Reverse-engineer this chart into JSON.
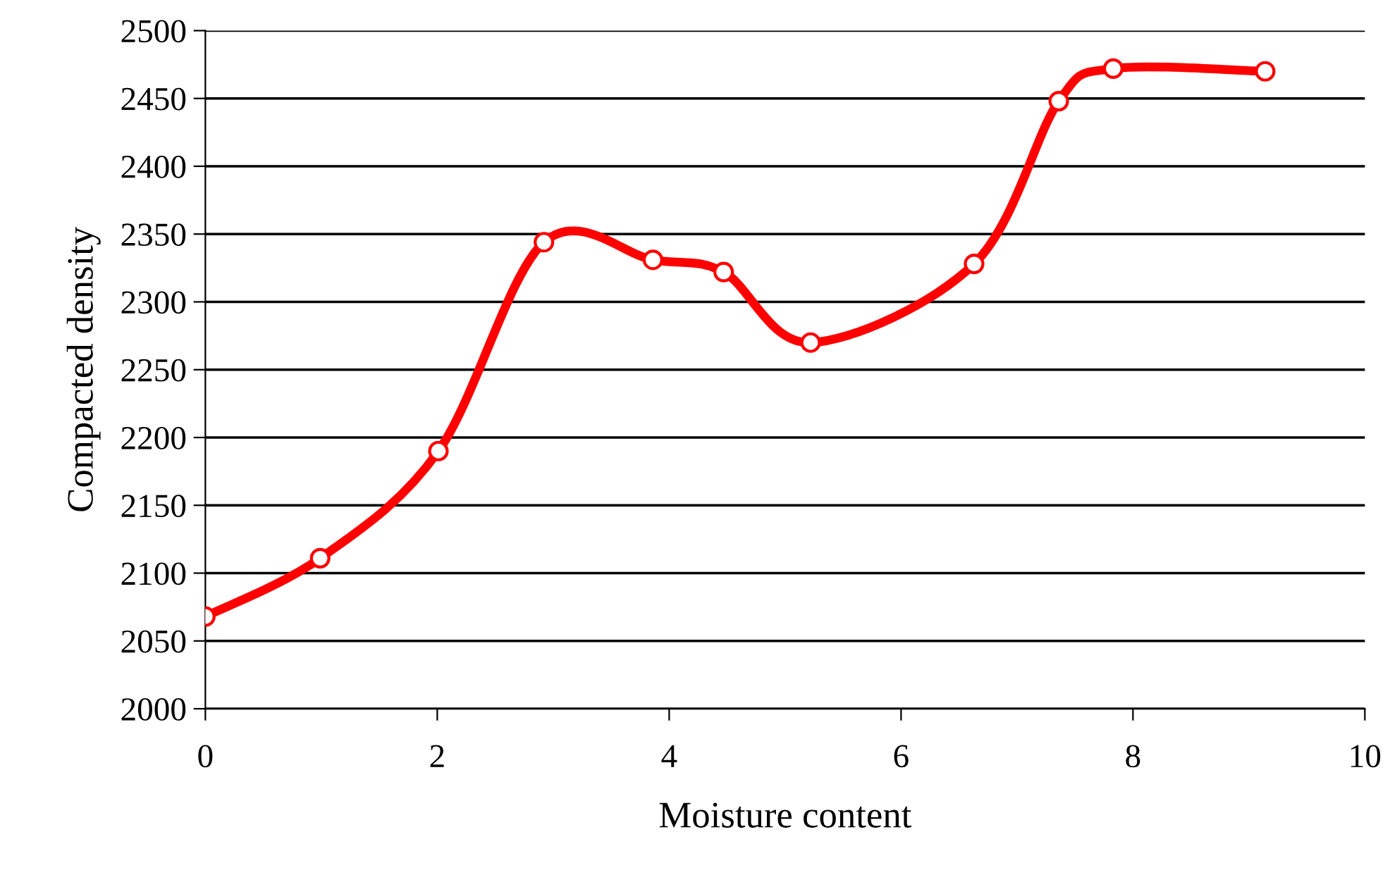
{
  "chart_data": {
    "type": "line",
    "xlabel": "Moisture content",
    "ylabel": "Compacted density",
    "xlim": [
      0,
      10
    ],
    "xticks": [
      0,
      2,
      4,
      6,
      8,
      10
    ],
    "ylim": [
      2000,
      2500
    ],
    "yticks": [
      2000,
      2050,
      2100,
      2150,
      2200,
      2250,
      2300,
      2350,
      2400,
      2450,
      2500
    ],
    "grid": "y",
    "marker": "circle",
    "line_style": "solid",
    "legend": false,
    "series": [
      {
        "color": "#ff0000",
        "x": [
          0,
          0.99,
          2.01,
          2.92,
          3.86,
          4.47,
          5.22,
          6.63,
          7.36,
          7.83,
          9.14
        ],
        "values": [
          2068,
          2111,
          2190,
          2344,
          2331,
          2322,
          2270,
          2328,
          2448,
          2472,
          2470
        ]
      }
    ]
  }
}
